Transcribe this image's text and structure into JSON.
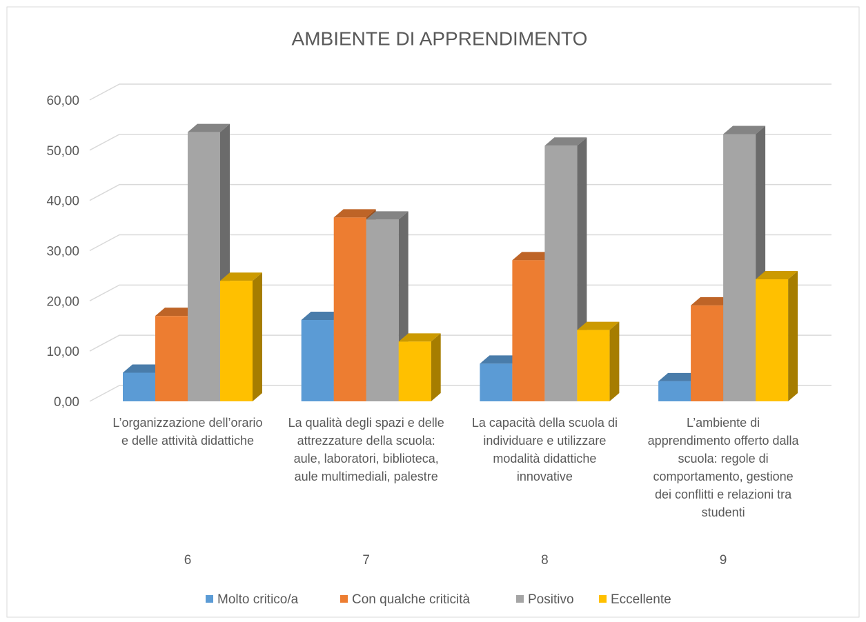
{
  "chart_data": {
    "type": "bar3d",
    "title": "AMBIENTE DI APPRENDIMENTO",
    "categories": [
      "L’organizzazione dell’orario e delle attività didattiche",
      "La qualità degli spazi e delle attrezzature della scuola: aule, laboratori, biblioteca, aule multimediali, palestre",
      "La capacità della scuola di individuare e utilizzare modalità didattiche innovative",
      "L’ambiente di apprendimento offerto dalla scuola: regole di comportamento, gestione dei conflitti e relazioni tra studenti"
    ],
    "category_groups": [
      "6",
      "7",
      "8",
      "9"
    ],
    "series": [
      {
        "name": "Molto critico/a",
        "color": "#5b9bd5",
        "values": [
          5.7,
          16.2,
          7.5,
          4.0
        ]
      },
      {
        "name": "Con qualche criticità",
        "color": "#ed7d31",
        "values": [
          17.0,
          36.6,
          28.1,
          19.1
        ]
      },
      {
        "name": "Positivo",
        "color": "#a5a5a5",
        "values": [
          53.6,
          36.2,
          50.9,
          53.2
        ]
      },
      {
        "name": "Eccellente",
        "color": "#ffc000",
        "values": [
          24.0,
          11.9,
          14.2,
          24.3
        ]
      }
    ],
    "ylim": [
      0,
      60
    ],
    "yticks": [
      {
        "value": 0,
        "label": "0,00"
      },
      {
        "value": 10,
        "label": "10,00"
      },
      {
        "value": 20,
        "label": "20,00"
      },
      {
        "value": 30,
        "label": "30,00"
      },
      {
        "value": 40,
        "label": "40,00"
      },
      {
        "value": 50,
        "label": "50,00"
      },
      {
        "value": 60,
        "label": "60,00"
      }
    ],
    "grid": true,
    "legend": "bottom"
  }
}
